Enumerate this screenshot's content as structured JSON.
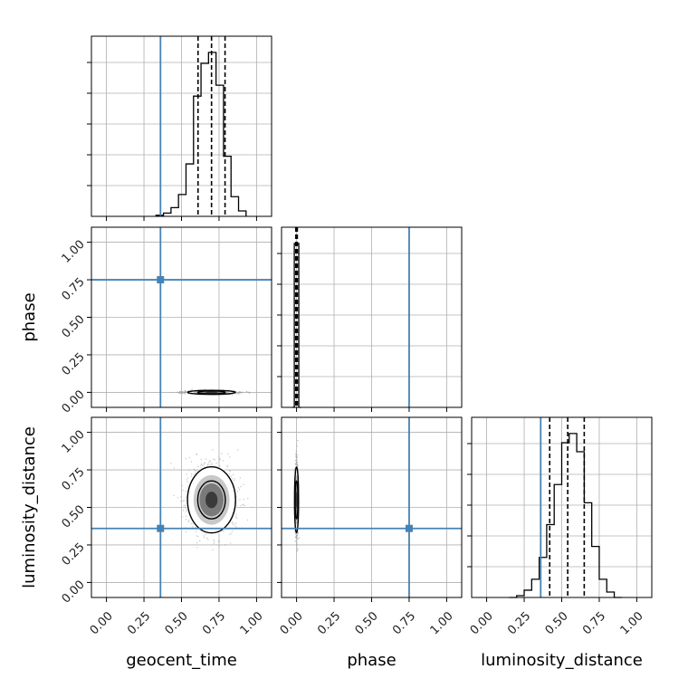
{
  "chart_data": {
    "type": "corner",
    "parameters": [
      "geocent_time",
      "phase",
      "luminosity_distance"
    ],
    "axis_labels": {
      "x": [
        "geocent_time",
        "phase",
        "luminosity_distance"
      ],
      "y": [
        "phase",
        "luminosity_distance"
      ]
    },
    "tick_values": [
      0.0,
      0.25,
      0.5,
      0.75,
      1.0
    ],
    "tick_labels": [
      "0.00",
      "0.25",
      "0.50",
      "0.75",
      "1.00"
    ],
    "axis_range": [
      -0.1,
      1.1
    ],
    "grid": true,
    "truths": {
      "geocent_time": 0.36,
      "phase": 0.75,
      "luminosity_distance": 0.36
    },
    "quantiles": {
      "geocent_time": [
        0.61,
        0.7,
        0.79
      ],
      "phase": [
        -0.005,
        0.0,
        0.005
      ],
      "luminosity_distance": [
        0.42,
        0.54,
        0.65
      ]
    },
    "histograms": {
      "geocent_time": {
        "bin_edges": [
          0.33,
          0.38,
          0.43,
          0.48,
          0.53,
          0.58,
          0.63,
          0.68,
          0.73,
          0.78,
          0.83,
          0.88,
          0.93
        ],
        "counts": [
          1,
          3,
          8,
          20,
          48,
          110,
          140,
          150,
          120,
          55,
          18,
          5
        ]
      },
      "phase": {
        "bin_edges": [
          -0.03,
          -0.015,
          0.0,
          0.015,
          0.03
        ],
        "counts": [
          0,
          100,
          100,
          0
        ]
      },
      "luminosity_distance": {
        "bin_edges": [
          0.15,
          0.2,
          0.25,
          0.3,
          0.35,
          0.4,
          0.45,
          0.5,
          0.55,
          0.6,
          0.65,
          0.7,
          0.75,
          0.8,
          0.85,
          0.9
        ],
        "counts": [
          0,
          1,
          4,
          10,
          22,
          40,
          62,
          85,
          90,
          80,
          52,
          28,
          10,
          3,
          0
        ]
      }
    },
    "density_2d": {
      "phase_vs_geocent_time": {
        "x_mean": 0.7,
        "y_mean": 0.0,
        "x_sd": 0.08,
        "y_sd": 0.005
      },
      "luminosity_distance_vs_geocent_time": {
        "x_mean": 0.7,
        "y_mean": 0.55,
        "x_sd": 0.08,
        "y_sd": 0.11
      },
      "luminosity_distance_vs_phase": {
        "x_mean": 0.0,
        "y_mean": 0.55,
        "x_sd": 0.005,
        "y_sd": 0.11
      }
    }
  },
  "colors": {
    "truth": "#4682b4",
    "hist": "#000000",
    "grid": "#b0b0b0",
    "density_dark": "#3a3a3a",
    "density_mid": "#7a7a7a",
    "density_light": "#c8c8c8",
    "scatter": "#9a9a9a"
  }
}
